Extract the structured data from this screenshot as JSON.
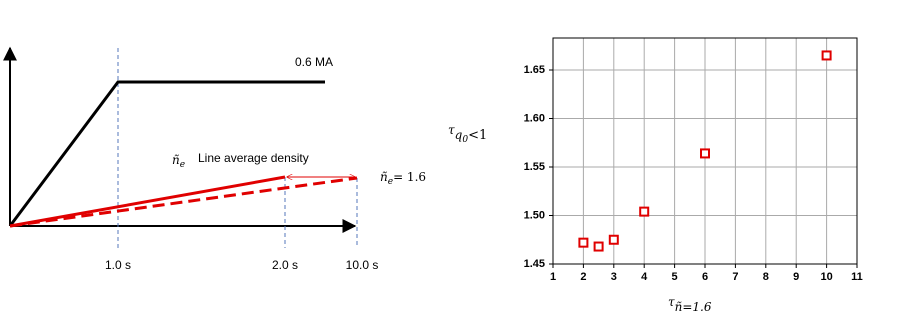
{
  "diagram": {
    "current_label": "0.6 MA",
    "density_symbol": "ñ",
    "density_subscript": "e",
    "density_label": "Line average density",
    "final_symbol": "ñ",
    "final_subscript": "e",
    "final_value": "= 1.6",
    "time_labels": [
      "1.0 s",
      "2.0 s",
      "10.0 s"
    ]
  },
  "chart_data": {
    "type": "scatter",
    "x_label": {
      "symbol": "τ",
      "subscript": "ñ=1.6"
    },
    "y_label": {
      "symbol": "τ",
      "subscript": "q",
      "subsub": "0",
      "rest": "<1"
    },
    "x": [
      2,
      2.5,
      3,
      4,
      6,
      10
    ],
    "values": [
      1.472,
      1.468,
      1.475,
      1.504,
      1.564,
      1.665
    ],
    "color": "#e00000",
    "xlim": [
      1,
      11
    ],
    "ylim": [
      1.45,
      1.683
    ],
    "xticks": [
      1,
      2,
      3,
      4,
      5,
      6,
      7,
      8,
      9,
      10,
      11
    ],
    "yticks": [
      1.45,
      {
        "value": 1.5,
        "label": "1.50"
      },
      1.55,
      {
        "value": 1.6,
        "label": "1.60"
      },
      1.65
    ],
    "grid": true
  }
}
